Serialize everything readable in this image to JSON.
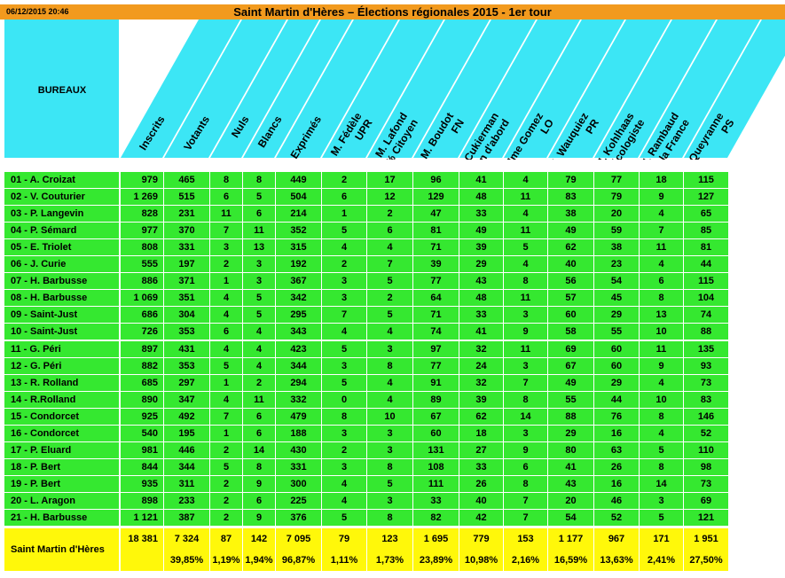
{
  "timestamp": "06/12/2015 20:46",
  "title": "Saint Martin d'Hères – Élections régionales 2015 - 1er tour",
  "bureaux_label": "BUREAUX",
  "columns": [
    {
      "id": "inscrits",
      "lines": [
        "Inscrits"
      ]
    },
    {
      "id": "votants",
      "lines": [
        "Votants"
      ]
    },
    {
      "id": "nuls",
      "lines": [
        "Nuls"
      ]
    },
    {
      "id": "blancs",
      "lines": [
        "Blancs"
      ]
    },
    {
      "id": "exprimes",
      "lines": [
        "Exprimés"
      ]
    },
    {
      "id": "fedele",
      "lines": [
        "M. Fédèle",
        "UPR"
      ]
    },
    {
      "id": "lafond",
      "lines": [
        "M. Lafond",
        "100% Citoyen"
      ]
    },
    {
      "id": "boudot",
      "lines": [
        "M. Boudot",
        "FN"
      ]
    },
    {
      "id": "cukierman",
      "lines": [
        "Mme Cukierman",
        "Humain d'abord"
      ]
    },
    {
      "id": "gomez",
      "lines": [
        "Mme Gomez",
        "LO"
      ]
    },
    {
      "id": "wauquiez",
      "lines": [
        "M. Wauquiez",
        "PR"
      ]
    },
    {
      "id": "kohlhaas",
      "lines": [
        "M. Kohlhaas",
        "citoyen et écologiste"
      ]
    },
    {
      "id": "rambaud",
      "lines": [
        "M. Rambaud",
        "Debout la France"
      ]
    },
    {
      "id": "queyranne",
      "lines": [
        "M. Queyranne",
        "PS"
      ]
    }
  ],
  "rows": [
    {
      "name": "01 - A. Croizat",
      "values": [
        "979",
        "465",
        "8",
        "8",
        "449",
        "2",
        "17",
        "96",
        "41",
        "4",
        "79",
        "77",
        "18",
        "115"
      ]
    },
    {
      "name": "02 - V. Couturier",
      "values": [
        "1 269",
        "515",
        "6",
        "5",
        "504",
        "6",
        "12",
        "129",
        "48",
        "11",
        "83",
        "79",
        "9",
        "127"
      ]
    },
    {
      "name": "03 - P. Langevin",
      "values": [
        "828",
        "231",
        "11",
        "6",
        "214",
        "1",
        "2",
        "47",
        "33",
        "4",
        "38",
        "20",
        "4",
        "65"
      ]
    },
    {
      "name": "04 - P. Sémard",
      "values": [
        "977",
        "370",
        "7",
        "11",
        "352",
        "5",
        "6",
        "81",
        "49",
        "11",
        "49",
        "59",
        "7",
        "85"
      ]
    },
    {
      "name": "05 - E. Triolet",
      "values": [
        "808",
        "331",
        "3",
        "13",
        "315",
        "4",
        "4",
        "71",
        "39",
        "5",
        "62",
        "38",
        "11",
        "81"
      ]
    },
    {
      "name": "06 - J. Curie",
      "values": [
        "555",
        "197",
        "2",
        "3",
        "192",
        "2",
        "7",
        "39",
        "29",
        "4",
        "40",
        "23",
        "4",
        "44"
      ]
    },
    {
      "name": "07 - H. Barbusse",
      "values": [
        "886",
        "371",
        "1",
        "3",
        "367",
        "3",
        "5",
        "77",
        "43",
        "8",
        "56",
        "54",
        "6",
        "115"
      ]
    },
    {
      "name": "08 - H. Barbusse",
      "values": [
        "1 069",
        "351",
        "4",
        "5",
        "342",
        "3",
        "2",
        "64",
        "48",
        "11",
        "57",
        "45",
        "8",
        "104"
      ]
    },
    {
      "name": "09 - Saint-Just",
      "values": [
        "686",
        "304",
        "4",
        "5",
        "295",
        "7",
        "5",
        "71",
        "33",
        "3",
        "60",
        "29",
        "13",
        "74"
      ]
    },
    {
      "name": "10 - Saint-Just",
      "values": [
        "726",
        "353",
        "6",
        "4",
        "343",
        "4",
        "4",
        "74",
        "41",
        "9",
        "58",
        "55",
        "10",
        "88"
      ]
    },
    {
      "name": "11 - G. Péri",
      "values": [
        "897",
        "431",
        "4",
        "4",
        "423",
        "5",
        "3",
        "97",
        "32",
        "11",
        "69",
        "60",
        "11",
        "135"
      ]
    },
    {
      "name": "12 - G. Péri",
      "values": [
        "882",
        "353",
        "5",
        "4",
        "344",
        "3",
        "8",
        "77",
        "24",
        "3",
        "67",
        "60",
        "9",
        "93"
      ]
    },
    {
      "name": "13 - R. Rolland",
      "values": [
        "685",
        "297",
        "1",
        "2",
        "294",
        "5",
        "4",
        "91",
        "32",
        "7",
        "49",
        "29",
        "4",
        "73"
      ]
    },
    {
      "name": "14 - R.Rolland",
      "values": [
        "890",
        "347",
        "4",
        "11",
        "332",
        "0",
        "4",
        "89",
        "39",
        "8",
        "55",
        "44",
        "10",
        "83"
      ]
    },
    {
      "name": "15 - Condorcet",
      "values": [
        "925",
        "492",
        "7",
        "6",
        "479",
        "8",
        "10",
        "67",
        "62",
        "14",
        "88",
        "76",
        "8",
        "146"
      ]
    },
    {
      "name": "16 - Condorcet",
      "values": [
        "540",
        "195",
        "1",
        "6",
        "188",
        "3",
        "3",
        "60",
        "18",
        "3",
        "29",
        "16",
        "4",
        "52"
      ]
    },
    {
      "name": "17 - P. Eluard",
      "values": [
        "981",
        "446",
        "2",
        "14",
        "430",
        "2",
        "3",
        "131",
        "27",
        "9",
        "80",
        "63",
        "5",
        "110"
      ]
    },
    {
      "name": "18 - P. Bert",
      "values": [
        "844",
        "344",
        "5",
        "8",
        "331",
        "3",
        "8",
        "108",
        "33",
        "6",
        "41",
        "26",
        "8",
        "98"
      ]
    },
    {
      "name": "19 - P. Bert",
      "values": [
        "935",
        "311",
        "2",
        "9",
        "300",
        "4",
        "5",
        "111",
        "26",
        "8",
        "43",
        "16",
        "14",
        "73"
      ]
    },
    {
      "name": "20 - L. Aragon",
      "values": [
        "898",
        "233",
        "2",
        "6",
        "225",
        "4",
        "3",
        "33",
        "40",
        "7",
        "20",
        "46",
        "3",
        "69"
      ]
    },
    {
      "name": "21 - H. Barbusse",
      "values": [
        "1 121",
        "387",
        "2",
        "9",
        "376",
        "5",
        "8",
        "82",
        "42",
        "7",
        "54",
        "52",
        "5",
        "121"
      ]
    }
  ],
  "total": {
    "name": "Saint Martin d'Hères",
    "values": [
      "18 381",
      "7 324",
      "87",
      "142",
      "7 095",
      "79",
      "123",
      "1 695",
      "779",
      "153",
      "1 177",
      "967",
      "171",
      "1 951"
    ],
    "percents": [
      "",
      "39,85%",
      "1,19%",
      "1,94%",
      "96,87%",
      "1,11%",
      "1,73%",
      "23,89%",
      "10,98%",
      "2,16%",
      "16,59%",
      "13,63%",
      "2,41%",
      "27,50%"
    ]
  },
  "colors": {
    "orange": "#f29a1e",
    "cyan": "#3ce6f5",
    "green": "#35e830",
    "yellow": "#fff80a"
  }
}
